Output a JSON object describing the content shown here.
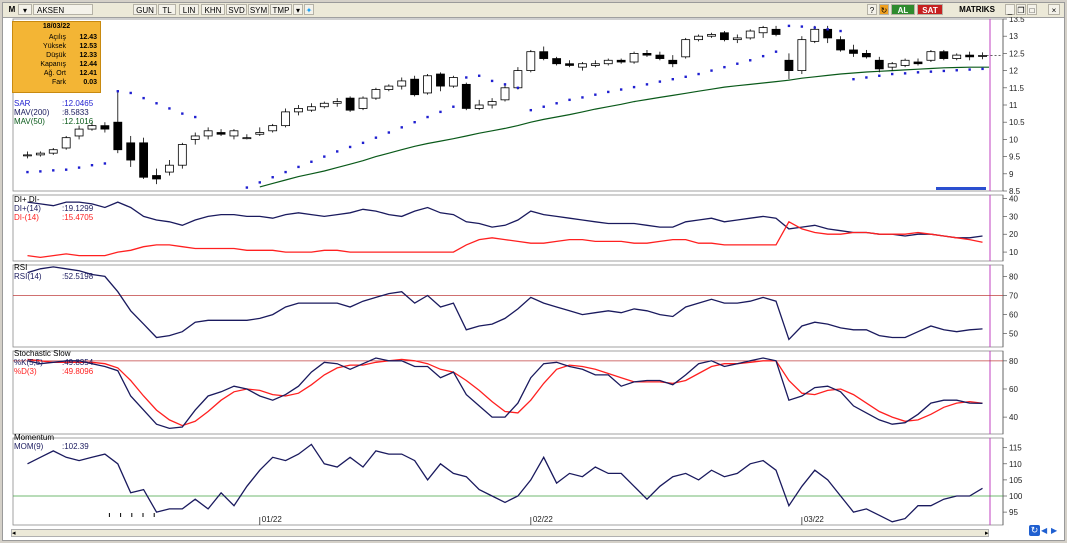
{
  "toolbar": {
    "logo": "M",
    "symbol": "AKSEN",
    "buttons": [
      "GUN",
      "TL",
      "LIN",
      "KHN",
      "SVD",
      "SYM",
      "TMP"
    ],
    "buy": "AL",
    "sell": "SAT",
    "matriks": "MATRIKS"
  },
  "info_panel": {
    "date": "18/03/22",
    "rows": [
      {
        "label": "Açılış",
        "value": "12.43"
      },
      {
        "label": "Yüksek",
        "value": "12.53"
      },
      {
        "label": "Düşük",
        "value": "12.33"
      },
      {
        "label": "Kapanış",
        "value": "12.44"
      },
      {
        "label": "Ağ. Ort",
        "value": "12.41"
      },
      {
        "label": "Fark",
        "value": "0.03"
      }
    ]
  },
  "colors": {
    "navy": "#1a1a5e",
    "red": "#ff2020",
    "blue": "#1f1fd0",
    "green": "#0a5a1a",
    "magenta": "#c040c0",
    "refline_red": "#c04040",
    "refline_green": "#40a040"
  },
  "chart_data": [
    {
      "type": "candlestick",
      "panel": "price",
      "ylim": [
        8.5,
        13.5
      ],
      "yticks": [
        "13.5",
        "13",
        "12.5",
        "12",
        "11.5",
        "11",
        "10.5",
        "10",
        "9.5",
        "9",
        "8.5"
      ],
      "legend": [
        {
          "name": "SAR",
          "value": ":12.0465",
          "color": "#1f1fd0"
        },
        {
          "name": "MAV(200)",
          "value": ":8.5833",
          "color": "#1a1a5e"
        },
        {
          "name": "MAV(50)",
          "value": ":12.1016",
          "color": "#0a5a1a"
        }
      ],
      "x_labels": [
        "01/22",
        "02/22",
        "03/22"
      ],
      "x_label_index": [
        18,
        39,
        60
      ],
      "ohlc": [
        [
          9.55,
          9.65,
          9.45,
          9.55
        ],
        [
          9.55,
          9.65,
          9.5,
          9.6
        ],
        [
          9.6,
          9.75,
          9.55,
          9.7
        ],
        [
          9.75,
          10.1,
          9.7,
          10.05
        ],
        [
          10.1,
          10.4,
          10.0,
          10.3
        ],
        [
          10.3,
          10.5,
          10.25,
          10.4
        ],
        [
          10.4,
          10.5,
          10.2,
          10.3
        ],
        [
          10.5,
          11.4,
          9.6,
          9.7
        ],
        [
          9.9,
          10.1,
          9.2,
          9.4
        ],
        [
          9.9,
          10.05,
          8.85,
          8.9
        ],
        [
          8.95,
          9.15,
          8.7,
          8.85
        ],
        [
          9.05,
          9.4,
          8.95,
          9.25
        ],
        [
          9.25,
          9.9,
          9.15,
          9.85
        ],
        [
          10.0,
          10.2,
          9.85,
          10.1
        ],
        [
          10.1,
          10.35,
          10.0,
          10.25
        ],
        [
          10.2,
          10.3,
          10.1,
          10.15
        ],
        [
          10.1,
          10.3,
          10.0,
          10.25
        ],
        [
          10.05,
          10.15,
          10.0,
          10.05
        ],
        [
          10.15,
          10.35,
          10.1,
          10.2
        ],
        [
          10.25,
          10.45,
          10.2,
          10.4
        ],
        [
          10.4,
          10.9,
          10.35,
          10.8
        ],
        [
          10.8,
          11.0,
          10.7,
          10.9
        ],
        [
          10.85,
          11.05,
          10.8,
          10.95
        ],
        [
          10.95,
          11.1,
          10.9,
          11.05
        ],
        [
          11.05,
          11.2,
          10.95,
          11.1
        ],
        [
          11.2,
          11.25,
          10.8,
          10.85
        ],
        [
          10.9,
          11.25,
          10.85,
          11.2
        ],
        [
          11.2,
          11.5,
          11.15,
          11.45
        ],
        [
          11.45,
          11.6,
          11.4,
          11.55
        ],
        [
          11.55,
          11.8,
          11.45,
          11.7
        ],
        [
          11.75,
          11.85,
          11.25,
          11.3
        ],
        [
          11.35,
          11.9,
          11.3,
          11.85
        ],
        [
          11.9,
          11.95,
          11.4,
          11.55
        ],
        [
          11.55,
          11.85,
          11.5,
          11.8
        ],
        [
          11.6,
          11.65,
          10.85,
          10.9
        ],
        [
          10.9,
          11.15,
          10.85,
          11.0
        ],
        [
          11.0,
          11.2,
          10.9,
          11.1
        ],
        [
          11.15,
          11.6,
          11.1,
          11.5
        ],
        [
          11.5,
          12.1,
          11.45,
          12.0
        ],
        [
          12.0,
          12.6,
          11.95,
          12.55
        ],
        [
          12.55,
          12.7,
          12.3,
          12.35
        ],
        [
          12.35,
          12.4,
          12.15,
          12.2
        ],
        [
          12.2,
          12.3,
          12.1,
          12.15
        ],
        [
          12.1,
          12.25,
          12.0,
          12.2
        ],
        [
          12.15,
          12.3,
          12.1,
          12.2
        ],
        [
          12.2,
          12.35,
          12.15,
          12.3
        ],
        [
          12.3,
          12.35,
          12.2,
          12.25
        ],
        [
          12.25,
          12.55,
          12.2,
          12.5
        ],
        [
          12.5,
          12.6,
          12.4,
          12.45
        ],
        [
          12.45,
          12.55,
          12.3,
          12.35
        ],
        [
          12.3,
          12.45,
          12.1,
          12.2
        ],
        [
          12.4,
          12.95,
          12.35,
          12.9
        ],
        [
          12.9,
          13.05,
          12.85,
          13.0
        ],
        [
          13.0,
          13.1,
          12.95,
          13.05
        ],
        [
          13.1,
          13.15,
          12.85,
          12.9
        ],
        [
          12.9,
          13.05,
          12.8,
          12.95
        ],
        [
          12.95,
          13.2,
          12.9,
          13.15
        ],
        [
          13.1,
          13.3,
          12.95,
          13.25
        ],
        [
          13.2,
          13.3,
          13.0,
          13.05
        ],
        [
          12.3,
          12.5,
          11.75,
          12.0
        ],
        [
          12.0,
          13.0,
          11.9,
          12.9
        ],
        [
          12.85,
          13.3,
          12.8,
          13.2
        ],
        [
          13.2,
          13.3,
          12.8,
          12.95
        ],
        [
          12.9,
          13.0,
          12.55,
          12.6
        ],
        [
          12.6,
          12.75,
          12.4,
          12.5
        ],
        [
          12.5,
          12.6,
          12.35,
          12.4
        ],
        [
          12.3,
          12.4,
          11.95,
          12.05
        ],
        [
          12.1,
          12.25,
          12.0,
          12.2
        ],
        [
          12.15,
          12.35,
          12.1,
          12.3
        ],
        [
          12.25,
          12.35,
          12.15,
          12.2
        ],
        [
          12.3,
          12.6,
          12.25,
          12.55
        ],
        [
          12.55,
          12.6,
          12.3,
          12.35
        ],
        [
          12.35,
          12.5,
          12.3,
          12.45
        ],
        [
          12.45,
          12.55,
          12.3,
          12.4
        ],
        [
          12.43,
          12.53,
          12.33,
          12.44
        ]
      ],
      "sar": [
        9.05,
        9.07,
        9.1,
        9.12,
        9.18,
        9.25,
        9.3,
        11.4,
        11.35,
        11.2,
        11.05,
        10.9,
        10.75,
        10.65,
        null,
        null,
        null,
        8.6,
        8.75,
        8.9,
        9.05,
        9.2,
        9.35,
        9.5,
        9.65,
        9.78,
        9.9,
        10.05,
        10.2,
        10.35,
        10.5,
        10.65,
        10.8,
        10.95,
        11.8,
        11.85,
        11.7,
        11.6,
        11.5,
        10.85,
        10.95,
        11.05,
        11.15,
        11.22,
        11.3,
        11.38,
        11.45,
        11.52,
        11.6,
        11.68,
        11.75,
        11.82,
        11.9,
        12.0,
        12.1,
        12.2,
        12.3,
        12.42,
        12.55,
        13.3,
        13.28,
        13.25,
        13.2,
        13.15,
        11.75,
        11.8,
        11.85,
        11.9,
        11.92,
        11.95,
        11.97,
        11.99,
        12.01,
        12.03,
        12.05
      ],
      "mav50": [
        null,
        null,
        null,
        null,
        null,
        null,
        null,
        null,
        null,
        null,
        null,
        null,
        null,
        null,
        null,
        null,
        null,
        null,
        8.62,
        8.72,
        8.82,
        8.92,
        9.0,
        9.08,
        9.18,
        9.28,
        9.38,
        9.5,
        9.6,
        9.7,
        9.8,
        9.88,
        9.95,
        10.02,
        10.1,
        10.18,
        10.25,
        10.32,
        10.4,
        10.5,
        10.58,
        10.65,
        10.72,
        10.8,
        10.88,
        10.95,
        11.02,
        11.1,
        11.16,
        11.22,
        11.28,
        11.34,
        11.4,
        11.46,
        11.52,
        11.56,
        11.6,
        11.64,
        11.68,
        11.72,
        11.78,
        11.82,
        11.86,
        11.9,
        11.93,
        11.96,
        11.98,
        12.0,
        12.02,
        12.04,
        12.06,
        12.08,
        12.09,
        12.1,
        12.1
      ],
      "volume_blip": "blue bars bottom-right"
    },
    {
      "type": "line",
      "panel": "dmi",
      "title": "DI+ DI-",
      "ylim": [
        5,
        42
      ],
      "yticks": [
        "40",
        "30",
        "20",
        "10"
      ],
      "legend": [
        {
          "name": "DI+(14)",
          "value": ":19.1299",
          "color": "#1a1a5e"
        },
        {
          "name": "DI-(14)",
          "value": ":15.4705",
          "color": "#ff2020"
        }
      ],
      "series": [
        {
          "name": "DI+(14)",
          "values": [
            38,
            37,
            36,
            38,
            38,
            37,
            35,
            38,
            35,
            30,
            28,
            27,
            25,
            28,
            30,
            31,
            31,
            30,
            30,
            29,
            31,
            32,
            31,
            30,
            31,
            32,
            34,
            33,
            31,
            30,
            33,
            35,
            32,
            31,
            27,
            26,
            24,
            25,
            28,
            33,
            31,
            30,
            29,
            28,
            27,
            26,
            26,
            26,
            25,
            24,
            24,
            27,
            28,
            29,
            27,
            28,
            29,
            30,
            29,
            23,
            24,
            25,
            23,
            22,
            21,
            21,
            20,
            20,
            19,
            20,
            20,
            19,
            18,
            18,
            19
          ]
        },
        {
          "name": "DI-(14)",
          "values": [
            8,
            7,
            8,
            9,
            8,
            8,
            8,
            10,
            11,
            13,
            14,
            14,
            13,
            12,
            12,
            12,
            12,
            11,
            11,
            11,
            10,
            10,
            10,
            11,
            11,
            10,
            10,
            10,
            10,
            10,
            10,
            10,
            10,
            10,
            14,
            17,
            18,
            17,
            16,
            15,
            15,
            16,
            17,
            17,
            16,
            16,
            16,
            15,
            15,
            16,
            17,
            17,
            15,
            15,
            14,
            14,
            14,
            14,
            14,
            27,
            23,
            21,
            20,
            20,
            21,
            21,
            20,
            20,
            20,
            21,
            20,
            19,
            18,
            17,
            15.5
          ]
        }
      ]
    },
    {
      "type": "line",
      "panel": "rsi",
      "title": "RSI",
      "ylim": [
        43,
        86
      ],
      "yticks": [
        "80",
        "70",
        "60",
        "50"
      ],
      "reference_line": 70,
      "legend": [
        {
          "name": "RSI(14)",
          "value": ":52.5198",
          "color": "#1a1a5e"
        }
      ],
      "series": [
        {
          "name": "RSI(14)",
          "values": [
            82,
            84,
            85,
            84,
            83,
            81,
            80,
            72,
            62,
            55,
            48,
            49,
            51,
            56,
            57,
            57,
            57,
            57,
            58,
            60,
            64,
            66,
            66,
            66,
            66,
            64,
            67,
            69,
            71,
            72,
            66,
            70,
            64,
            66,
            52,
            54,
            55,
            58,
            63,
            69,
            66,
            64,
            62,
            60,
            61,
            62,
            61,
            63,
            62,
            60,
            59,
            64,
            66,
            68,
            66,
            66,
            67,
            69,
            67,
            47,
            54,
            56,
            55,
            53,
            52,
            52,
            49,
            48,
            48,
            51,
            54,
            52,
            51,
            52,
            52.5
          ]
        }
      ]
    },
    {
      "type": "line",
      "panel": "stochastic",
      "title": "Stochastic Slow",
      "ylim": [
        28,
        87
      ],
      "yticks": [
        "80",
        "60",
        "40"
      ],
      "reference_line": 80,
      "legend": [
        {
          "name": "%K(5,5)",
          "value": ":49.8354",
          "color": "#1a1a5e"
        },
        {
          "name": "%D(3)",
          "value": ":49.8096",
          "color": "#ff2020"
        }
      ],
      "series": [
        {
          "name": "%K(5,5)",
          "values": [
            80,
            78,
            79,
            80,
            80,
            78,
            76,
            73,
            55,
            45,
            35,
            32,
            33,
            45,
            55,
            58,
            62,
            60,
            55,
            52,
            56,
            62,
            72,
            79,
            78,
            74,
            78,
            82,
            80,
            80,
            76,
            76,
            68,
            72,
            56,
            48,
            40,
            40,
            50,
            68,
            78,
            79,
            76,
            74,
            70,
            70,
            62,
            65,
            66,
            66,
            63,
            70,
            78,
            80,
            76,
            78,
            80,
            82,
            80,
            52,
            55,
            61,
            62,
            58,
            48,
            43,
            38,
            35,
            36,
            42,
            50,
            52,
            52,
            50,
            49.8
          ]
        },
        {
          "name": "%D(3)",
          "values": [
            81,
            80,
            79,
            79,
            79,
            79,
            78,
            75,
            66,
            55,
            45,
            38,
            34,
            37,
            44,
            52,
            58,
            60,
            59,
            56,
            55,
            57,
            63,
            70,
            75,
            77,
            77,
            79,
            80,
            81,
            80,
            78,
            74,
            72,
            66,
            59,
            51,
            44,
            43,
            52,
            64,
            74,
            77,
            76,
            74,
            71,
            68,
            65,
            65,
            65,
            64,
            66,
            71,
            76,
            78,
            78,
            79,
            80,
            80,
            66,
            57,
            56,
            59,
            60,
            56,
            50,
            44,
            40,
            37,
            38,
            42,
            47,
            50,
            51,
            49.8
          ]
        }
      ]
    },
    {
      "type": "line",
      "panel": "momentum",
      "title": "Momentum",
      "ylim": [
        91,
        118
      ],
      "yticks": [
        "115",
        "110",
        "105",
        "100",
        "95"
      ],
      "reference_line": 100,
      "legend": [
        {
          "name": "MOM(9)",
          "value": ":102.39",
          "color": "#1a1a5e"
        }
      ],
      "series": [
        {
          "name": "MOM(9)",
          "values": [
            110,
            112,
            114,
            112,
            111,
            112,
            113,
            110,
            101,
            102,
            95,
            96,
            96,
            99,
            96,
            101,
            97,
            103,
            108,
            112,
            111,
            113,
            116,
            110,
            109,
            112,
            109,
            114,
            113,
            113,
            111,
            105,
            110,
            107,
            106,
            102,
            100,
            98,
            100,
            105,
            112,
            104,
            107,
            106,
            109,
            107,
            107,
            103,
            99,
            103,
            106,
            107,
            105,
            108,
            106,
            107,
            110,
            111,
            108,
            97,
            103,
            108,
            105,
            100,
            95,
            96,
            94,
            92,
            93,
            97,
            97,
            99,
            100,
            100,
            102.4
          ]
        }
      ]
    }
  ]
}
